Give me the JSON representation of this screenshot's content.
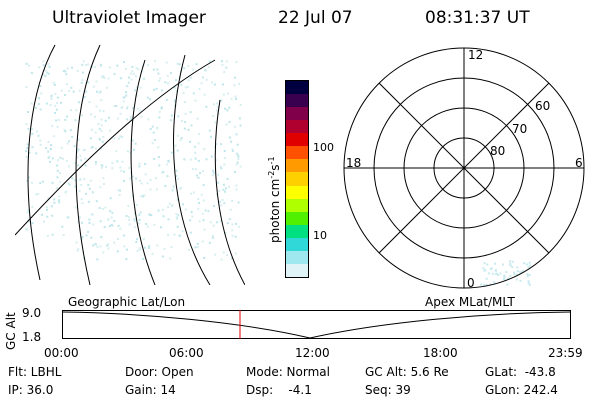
{
  "header": {
    "instrument": "Ultraviolet Imager",
    "date": "22 Jul 07",
    "time": "08:31:37 UT"
  },
  "colorbar": {
    "unit_label": "photon cm",
    "unit_sup1": "-2",
    "unit_mid": "s",
    "unit_sup2": "-1",
    "tick_100": "100",
    "tick_10": "10",
    "colors": [
      "#000040",
      "#3a0050",
      "#80004a",
      "#b00030",
      "#e00000",
      "#ff5000",
      "#ff9a00",
      "#ffd000",
      "#ffff00",
      "#b0ff00",
      "#50f000",
      "#00e080",
      "#30d8d8",
      "#a0e8f0",
      "#e0f4f8"
    ]
  },
  "polar_plot": {
    "labels": {
      "top": "12",
      "left": "18",
      "right": "6",
      "bottom": "0"
    },
    "rings": [
      "60",
      "70",
      "80"
    ]
  },
  "orbit_panel": {
    "left_title": "Geographic Lat/Lon",
    "right_title": "Apex  MLat/MLT",
    "ylabel": "GC Alt",
    "y_ticks": [
      "9.0",
      "1.8"
    ],
    "x_ticks": [
      "00:00",
      "06:00",
      "12:00",
      "18:00",
      "23:59"
    ]
  },
  "info": {
    "flt": "Flt: LBHL",
    "ip": "IP: 36.0",
    "door": "Door: Open",
    "gain": "Gain: 14",
    "mode": "Mode: Normal",
    "dsp": "Dsp:    -4.1",
    "gc_alt": "GC Alt: 5.6 Re",
    "seq": "Seq: 39",
    "glat": "GLat:  -43.8",
    "glon": "GLon: 242.4"
  }
}
